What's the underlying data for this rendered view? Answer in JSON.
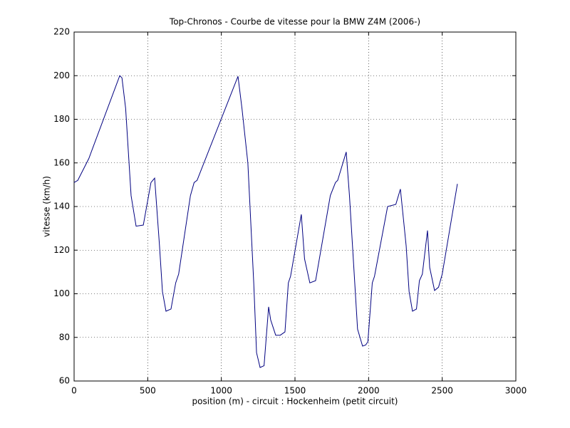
{
  "chart_data": {
    "type": "line",
    "title": "Top-Chronos - Courbe de vitesse pour la BMW Z4M (2006-)",
    "xlabel": "position (m) - circuit : Hockenheim (petit circuit)",
    "ylabel": "vitesse (km/h)",
    "color": "#000080",
    "x": [
      0,
      25,
      100,
      310,
      325,
      350,
      387,
      421,
      470,
      522,
      547,
      580,
      600,
      624,
      658,
      690,
      710,
      790,
      815,
      835,
      1113,
      1140,
      1180,
      1220,
      1239,
      1263,
      1290,
      1321,
      1335,
      1369,
      1400,
      1432,
      1455,
      1470,
      1543,
      1565,
      1601,
      1640,
      1740,
      1775,
      1790,
      1848,
      1870,
      1925,
      1959,
      1980,
      1995,
      2025,
      2040,
      2129,
      2185,
      2216,
      2255,
      2275,
      2298,
      2325,
      2345,
      2365,
      2400,
      2415,
      2448,
      2475,
      2500,
      2603
    ],
    "values": [
      151,
      152,
      162,
      200,
      199,
      185,
      145,
      131,
      131.5,
      151,
      153,
      122,
      101,
      92,
      93,
      105,
      109,
      145,
      151,
      152,
      199.7,
      185,
      160,
      105,
      73,
      66.2,
      67,
      94,
      88,
      81,
      81,
      82.5,
      105,
      108,
      136.4,
      116,
      105,
      106,
      145,
      151,
      152,
      165,
      145,
      83.8,
      76,
      76.5,
      78,
      105,
      108,
      140,
      141,
      148,
      122,
      101,
      92,
      93,
      106,
      109,
      129,
      112,
      101.5,
      103,
      109,
      150.4
    ],
    "xlim": [
      0,
      3000
    ],
    "xticks": [
      0,
      500,
      1000,
      1500,
      2000,
      2500,
      3000
    ],
    "ylim": [
      60,
      220
    ],
    "yticks": [
      60,
      80,
      100,
      120,
      140,
      160,
      180,
      200,
      220
    ],
    "grid": true
  }
}
